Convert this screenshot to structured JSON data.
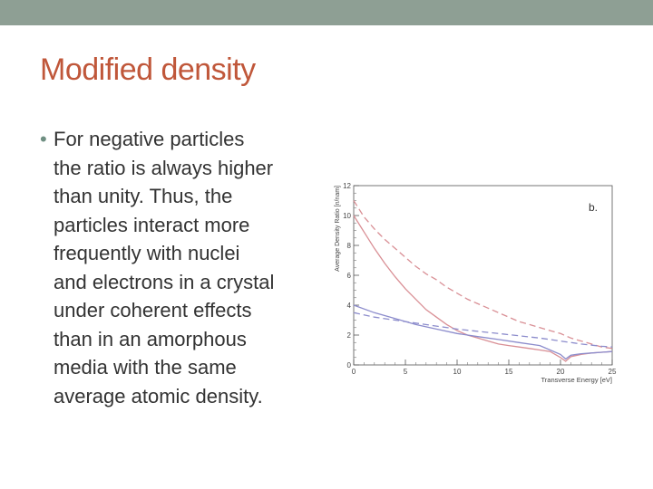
{
  "slide": {
    "title": "Modified density",
    "bullet_lines": [
      "For negative particles",
      "the ratio is always higher",
      "than unity. Thus, the",
      "particles interact more",
      "frequently with nuclei",
      "and electrons in a crystal",
      "under coherent effects",
      "than in an amorphous",
      "media with the same",
      "average atomic density."
    ],
    "bullet_glyph": "•"
  },
  "colors": {
    "topbar": "#8e9f94",
    "title": "#c0573a",
    "text": "#333333",
    "bullet": "#6f8f82",
    "red": "#d98f95",
    "blue": "#8c8ccc"
  },
  "chart_data": {
    "type": "line",
    "panel_label": "b.",
    "xlabel": "Transverse Energy [eV]",
    "ylabel": "Average Density Ratio [n/nam]",
    "xlim": [
      0,
      25
    ],
    "ylim": [
      0,
      12
    ],
    "xticks": [
      0,
      5,
      10,
      15,
      20,
      25
    ],
    "yticks": [
      0,
      2,
      4,
      6,
      8,
      10,
      12
    ],
    "grid": false,
    "series": [
      {
        "style": "dashed",
        "color": "red",
        "x": [
          0,
          1,
          2,
          3,
          4,
          5,
          6,
          7,
          8,
          9,
          10,
          11,
          12,
          13,
          14,
          15,
          16,
          17,
          18,
          19,
          20,
          21,
          22,
          23,
          24,
          25
        ],
        "y": [
          11.0,
          9.9,
          9.1,
          8.4,
          7.8,
          7.2,
          6.6,
          6.1,
          5.7,
          5.2,
          4.8,
          4.4,
          4.1,
          3.8,
          3.5,
          3.2,
          2.9,
          2.7,
          2.5,
          2.3,
          2.1,
          1.8,
          1.6,
          1.4,
          1.2,
          1.1
        ]
      },
      {
        "style": "solid",
        "color": "red",
        "x": [
          0,
          1,
          2,
          3,
          4,
          5,
          6,
          7,
          8,
          9,
          10,
          11,
          12,
          13,
          14,
          15,
          16,
          17,
          18,
          19,
          20,
          20.5,
          21,
          22,
          23,
          24,
          25
        ],
        "y": [
          10.0,
          8.9,
          7.8,
          6.8,
          5.9,
          5.1,
          4.4,
          3.7,
          3.2,
          2.7,
          2.3,
          2.0,
          1.8,
          1.6,
          1.4,
          1.3,
          1.2,
          1.1,
          1.0,
          0.9,
          0.5,
          0.25,
          0.55,
          0.7,
          0.8,
          0.85,
          0.9
        ]
      },
      {
        "style": "solid",
        "color": "blue",
        "x": [
          0,
          2,
          4,
          6,
          8,
          10,
          12,
          14,
          16,
          18,
          20,
          20.5,
          21,
          22,
          23,
          24,
          25
        ],
        "y": [
          4.0,
          3.5,
          3.1,
          2.7,
          2.4,
          2.1,
          1.9,
          1.7,
          1.5,
          1.3,
          0.7,
          0.4,
          0.65,
          0.75,
          0.8,
          0.85,
          0.9
        ]
      },
      {
        "style": "dashed",
        "color": "blue",
        "x": [
          0,
          2,
          4,
          6,
          8,
          10,
          12,
          14,
          16,
          18,
          20,
          22,
          24,
          25
        ],
        "y": [
          3.5,
          3.2,
          3.0,
          2.8,
          2.6,
          2.4,
          2.25,
          2.1,
          1.95,
          1.8,
          1.6,
          1.4,
          1.25,
          1.2
        ]
      }
    ]
  }
}
